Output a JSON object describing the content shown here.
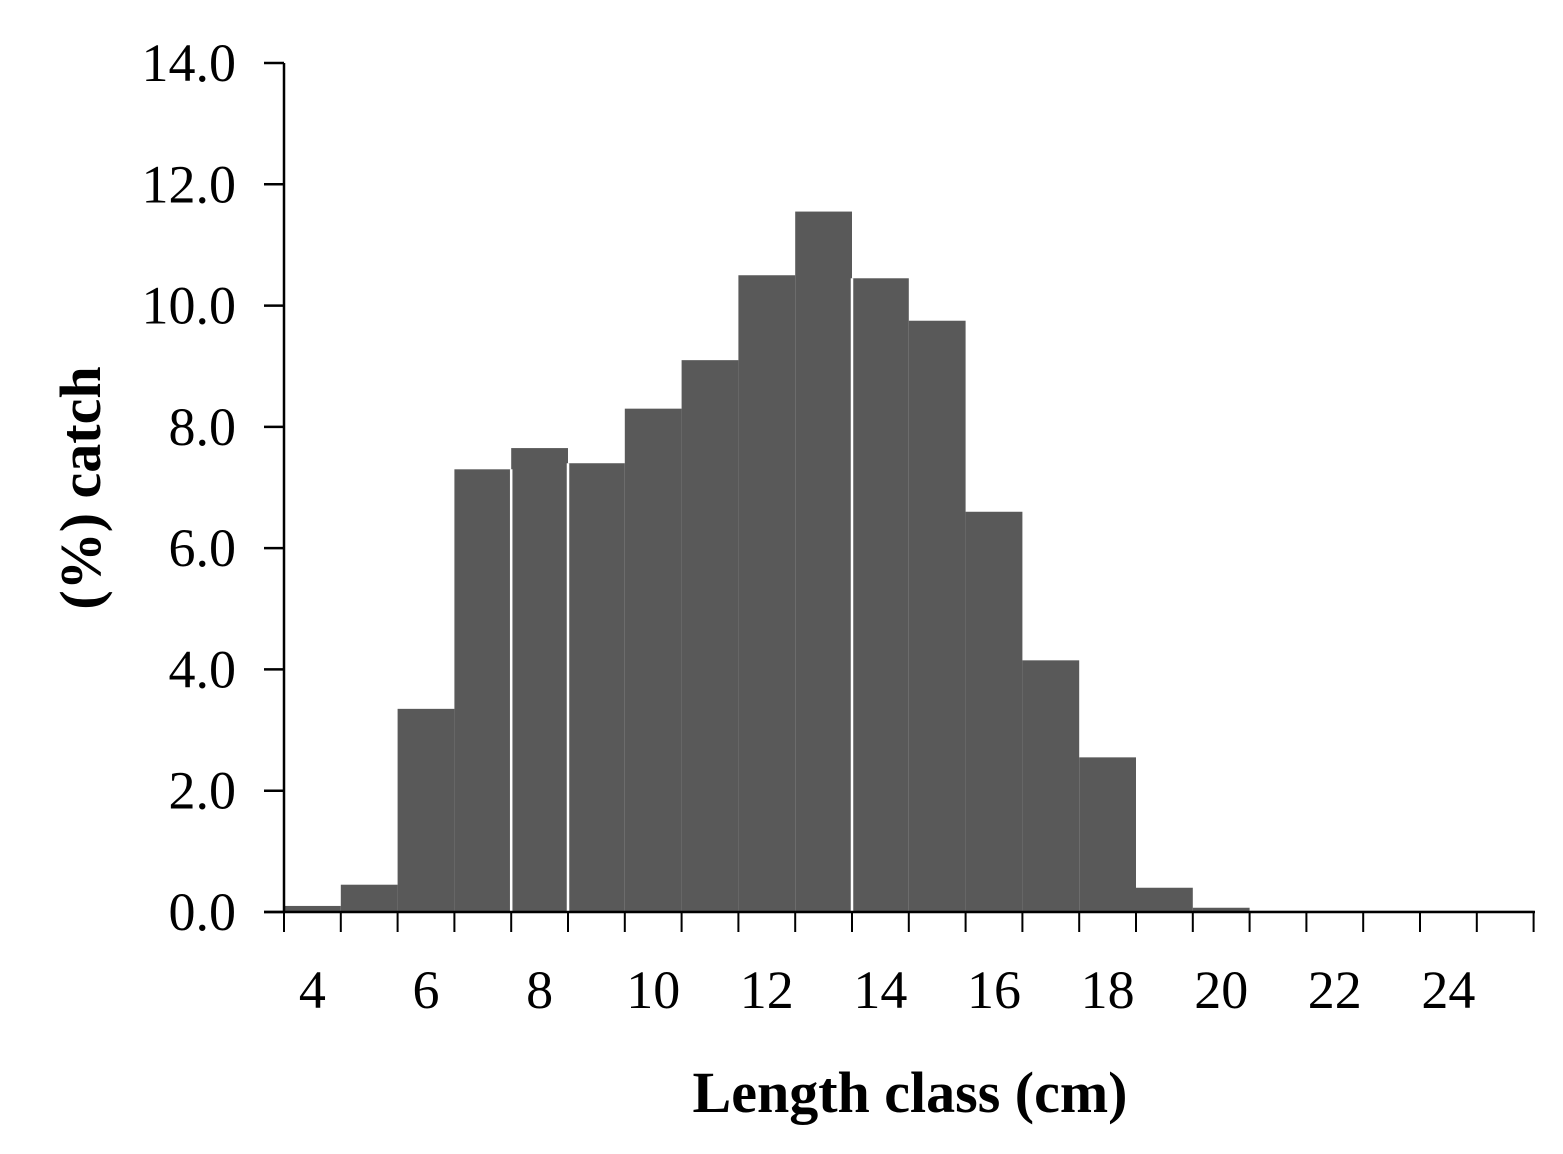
{
  "chart_data": {
    "type": "bar",
    "xlabel": "Length class (cm)",
    "ylabel": "(%) catch",
    "ylim": [
      0,
      14
    ],
    "y_ticks": [
      "0.0",
      "2.0",
      "4.0",
      "6.0",
      "8.0",
      "10.0",
      "12.0",
      "14.0"
    ],
    "x_tick_labels": [
      "4",
      "6",
      "8",
      "10",
      "12",
      "14",
      "16",
      "18",
      "20",
      "22",
      "24"
    ],
    "categories": [
      "4",
      "5",
      "6",
      "7",
      "8",
      "9",
      "10",
      "11",
      "12",
      "13",
      "14",
      "15",
      "16",
      "17",
      "18",
      "19",
      "20",
      "21",
      "22",
      "23",
      "24",
      "25"
    ],
    "values": [
      0.1,
      0.45,
      3.35,
      7.3,
      7.65,
      7.4,
      8.3,
      9.1,
      10.5,
      11.55,
      10.45,
      9.75,
      6.6,
      4.15,
      2.55,
      0.4,
      0.07,
      0.02,
      0.02,
      0.02,
      0.02,
      0.02
    ],
    "grid": false,
    "legend": "none",
    "bar_color": "#595959",
    "axis_color": "#000000"
  }
}
